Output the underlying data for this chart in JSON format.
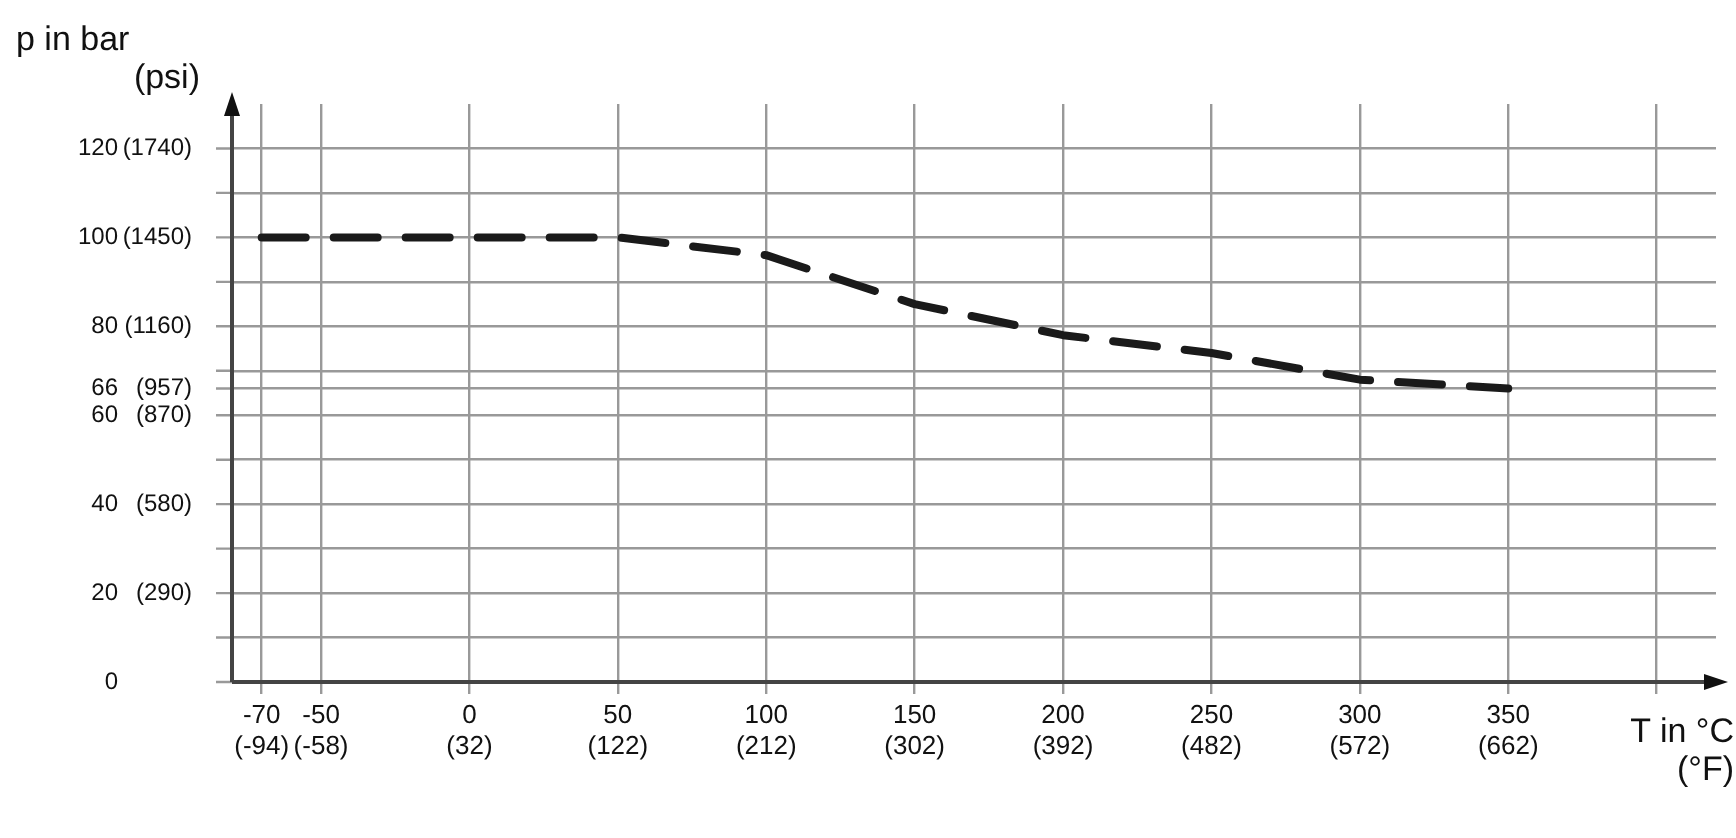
{
  "chart_data": {
    "type": "line",
    "xlabel": "T in °C (°F)",
    "ylabel": "p in bar",
    "y2label": "(psi)",
    "x": [
      -70,
      50,
      100,
      150,
      200,
      250,
      300,
      350
    ],
    "series": [
      {
        "color": "#1a1a1a",
        "values": [
          100,
          100,
          96,
          85,
          78,
          74,
          68,
          66
        ]
      }
    ],
    "xlim": [
      -80,
      420
    ],
    "xticks": [
      -70,
      -50,
      0,
      50,
      100,
      150,
      200,
      250,
      300,
      350,
      {
        "value": 400,
        "label": null
      }
    ],
    "x2lim": [
      -112,
      788
    ],
    "x2ticks": [
      {
        "value": -94,
        "label": "(-94)"
      },
      {
        "value": -58,
        "label": "(-58)"
      },
      {
        "value": 32,
        "label": "(32)"
      },
      {
        "value": 122,
        "label": "(122)"
      },
      {
        "value": 212,
        "label": "(212)"
      },
      {
        "value": 302,
        "label": "(302)"
      },
      {
        "value": 392,
        "label": "(392)"
      },
      {
        "value": 482,
        "label": "(482)"
      },
      {
        "value": 572,
        "label": "(572)"
      },
      {
        "value": 662,
        "label": "(662)"
      }
    ],
    "ylim": [
      0,
      130
    ],
    "yticks": [
      0,
      {
        "value": 10,
        "label": null
      },
      20,
      {
        "value": 30,
        "label": null
      },
      40,
      {
        "value": 50,
        "label": null
      },
      60,
      66,
      {
        "value": 70,
        "label": null
      },
      80,
      {
        "value": 90,
        "label": null
      },
      100,
      {
        "value": 110,
        "label": null
      },
      120
    ],
    "y2lim": [
      0,
      1885
    ],
    "y2ticks": [
      {
        "value": 290,
        "label": "(290)"
      },
      {
        "value": 580,
        "label": "(580)"
      },
      {
        "value": 870,
        "label": "(870)"
      },
      {
        "value": 957,
        "label": "(957)"
      },
      {
        "value": 1160,
        "label": "(1160)"
      },
      {
        "value": 1450,
        "label": "(1450)"
      },
      {
        "value": 1740,
        "label": "(1740)"
      }
    ],
    "grid": true,
    "legend": false,
    "marker": "none",
    "line_style": "dashed"
  }
}
